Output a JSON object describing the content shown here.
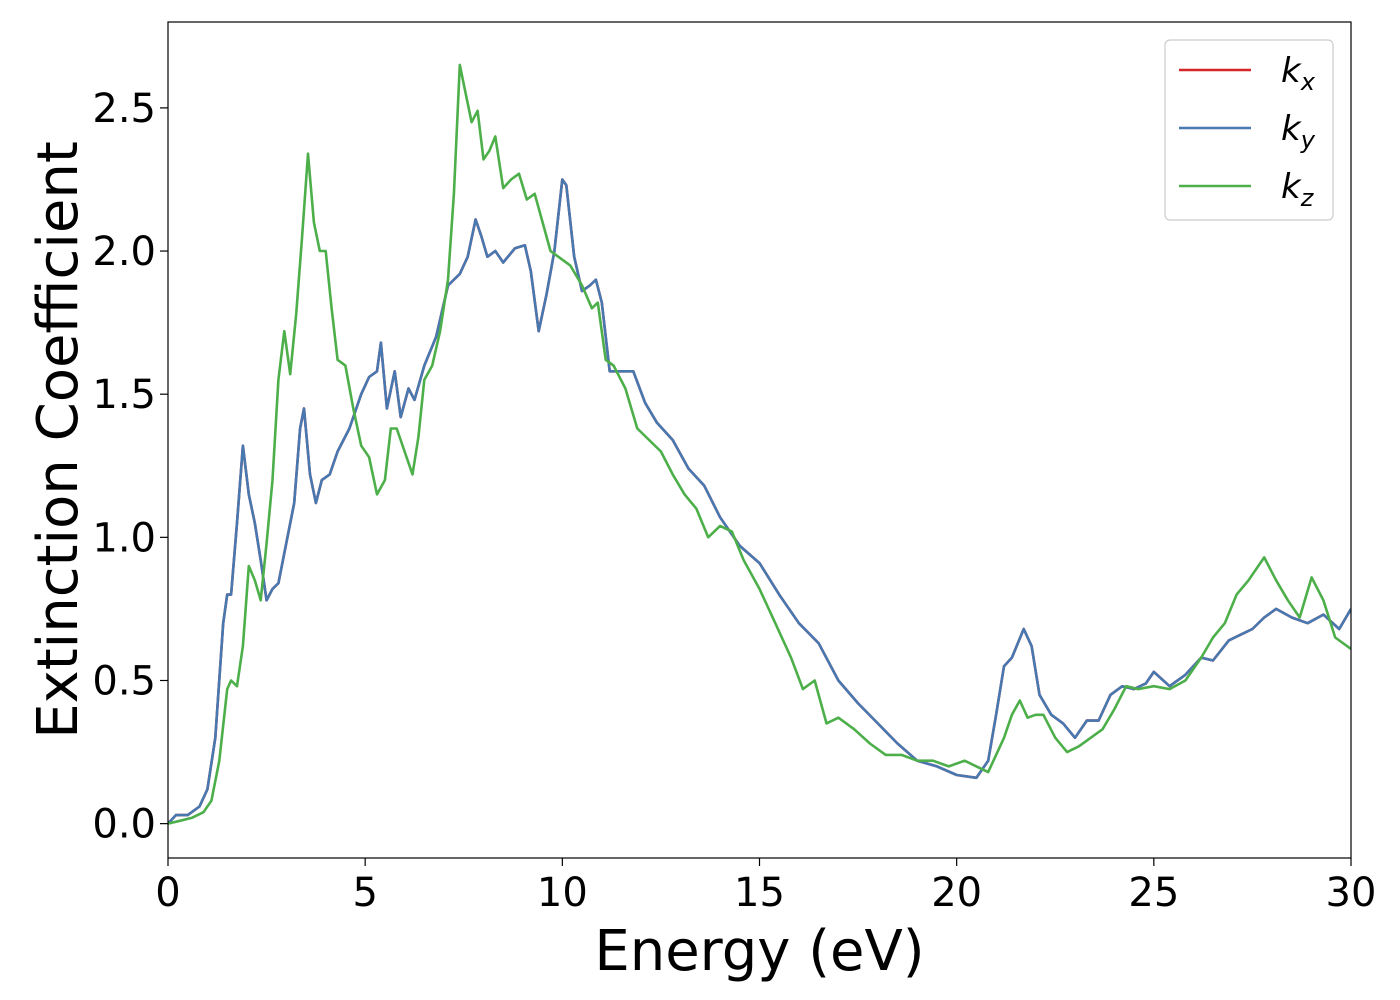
{
  "chart_data": {
    "type": "line",
    "title": "",
    "xlabel": "Energy (eV)",
    "ylabel": "Extinction Coefficient",
    "xlim": [
      0,
      30
    ],
    "ylim": [
      -0.12,
      2.8
    ],
    "xticks": [
      0,
      5,
      10,
      15,
      20,
      25,
      30
    ],
    "xtick_labels": [
      "0",
      "5",
      "10",
      "15",
      "20",
      "25",
      "30"
    ],
    "yticks": [
      0.0,
      0.5,
      1.0,
      1.5,
      2.0,
      2.5
    ],
    "ytick_labels": [
      "0.0",
      "0.5",
      "1.0",
      "1.5",
      "2.0",
      "2.5"
    ],
    "grid": false,
    "legend_position": "top-right",
    "series": [
      {
        "name": "k",
        "subscript": "x",
        "color": "#d62728",
        "x": [
          0,
          0.2,
          0.5,
          0.8,
          1.0,
          1.2,
          1.4,
          1.5,
          1.6,
          1.75,
          1.9,
          2.05,
          2.2,
          2.35,
          2.5,
          2.65,
          2.8,
          3.0,
          3.2,
          3.35,
          3.45,
          3.6,
          3.75,
          3.9,
          4.1,
          4.3,
          4.6,
          4.9,
          5.1,
          5.3,
          5.4,
          5.55,
          5.75,
          5.9,
          6.1,
          6.25,
          6.5,
          6.8,
          7.1,
          7.4,
          7.6,
          7.8,
          7.95,
          8.1,
          8.3,
          8.5,
          8.8,
          9.05,
          9.2,
          9.4,
          9.6,
          9.8,
          10.0,
          10.1,
          10.3,
          10.5,
          10.7,
          10.85,
          11.0,
          11.2,
          11.5,
          11.8,
          12.1,
          12.4,
          12.8,
          13.2,
          13.6,
          14.0,
          14.5,
          15.0,
          15.5,
          16.0,
          16.5,
          17.0,
          17.5,
          18.0,
          18.5,
          19.0,
          19.5,
          20.0,
          20.5,
          20.8,
          21.0,
          21.2,
          21.4,
          21.7,
          21.9,
          22.1,
          22.4,
          22.7,
          23.0,
          23.3,
          23.6,
          23.9,
          24.2,
          24.5,
          24.8,
          25.0,
          25.4,
          25.8,
          26.2,
          26.5,
          26.9,
          27.2,
          27.5,
          27.8,
          28.1,
          28.5,
          28.9,
          29.3,
          29.7,
          30.0
        ],
        "y": [
          0.0,
          0.03,
          0.03,
          0.06,
          0.12,
          0.3,
          0.7,
          0.8,
          0.8,
          1.05,
          1.32,
          1.15,
          1.05,
          0.92,
          0.78,
          0.82,
          0.84,
          0.98,
          1.12,
          1.38,
          1.45,
          1.22,
          1.12,
          1.2,
          1.22,
          1.3,
          1.38,
          1.5,
          1.56,
          1.58,
          1.68,
          1.45,
          1.58,
          1.42,
          1.52,
          1.48,
          1.6,
          1.7,
          1.88,
          1.92,
          1.98,
          2.11,
          2.05,
          1.98,
          2.0,
          1.96,
          2.01,
          2.02,
          1.93,
          1.72,
          1.85,
          2.0,
          2.25,
          2.23,
          1.98,
          1.86,
          1.88,
          1.9,
          1.82,
          1.58,
          1.58,
          1.58,
          1.47,
          1.4,
          1.34,
          1.24,
          1.18,
          1.07,
          0.97,
          0.91,
          0.8,
          0.7,
          0.63,
          0.5,
          0.42,
          0.35,
          0.28,
          0.22,
          0.2,
          0.17,
          0.16,
          0.22,
          0.38,
          0.55,
          0.58,
          0.68,
          0.62,
          0.45,
          0.38,
          0.35,
          0.3,
          0.36,
          0.36,
          0.45,
          0.48,
          0.47,
          0.49,
          0.53,
          0.48,
          0.52,
          0.58,
          0.57,
          0.64,
          0.66,
          0.68,
          0.72,
          0.75,
          0.72,
          0.7,
          0.73,
          0.68,
          0.75
        ]
      },
      {
        "name": "k",
        "subscript": "y",
        "color": "#4878b0",
        "x": [
          0,
          0.2,
          0.5,
          0.8,
          1.0,
          1.2,
          1.4,
          1.5,
          1.6,
          1.75,
          1.9,
          2.05,
          2.2,
          2.35,
          2.5,
          2.65,
          2.8,
          3.0,
          3.2,
          3.35,
          3.45,
          3.6,
          3.75,
          3.9,
          4.1,
          4.3,
          4.6,
          4.9,
          5.1,
          5.3,
          5.4,
          5.55,
          5.75,
          5.9,
          6.1,
          6.25,
          6.5,
          6.8,
          7.1,
          7.4,
          7.6,
          7.8,
          7.95,
          8.1,
          8.3,
          8.5,
          8.8,
          9.05,
          9.2,
          9.4,
          9.6,
          9.8,
          10.0,
          10.1,
          10.3,
          10.5,
          10.7,
          10.85,
          11.0,
          11.2,
          11.5,
          11.8,
          12.1,
          12.4,
          12.8,
          13.2,
          13.6,
          14.0,
          14.5,
          15.0,
          15.5,
          16.0,
          16.5,
          17.0,
          17.5,
          18.0,
          18.5,
          19.0,
          19.5,
          20.0,
          20.5,
          20.8,
          21.0,
          21.2,
          21.4,
          21.7,
          21.9,
          22.1,
          22.4,
          22.7,
          23.0,
          23.3,
          23.6,
          23.9,
          24.2,
          24.5,
          24.8,
          25.0,
          25.4,
          25.8,
          26.2,
          26.5,
          26.9,
          27.2,
          27.5,
          27.8,
          28.1,
          28.5,
          28.9,
          29.3,
          29.7,
          30.0
        ],
        "y": [
          0.0,
          0.03,
          0.03,
          0.06,
          0.12,
          0.3,
          0.7,
          0.8,
          0.8,
          1.05,
          1.32,
          1.15,
          1.05,
          0.92,
          0.78,
          0.82,
          0.84,
          0.98,
          1.12,
          1.38,
          1.45,
          1.22,
          1.12,
          1.2,
          1.22,
          1.3,
          1.38,
          1.5,
          1.56,
          1.58,
          1.68,
          1.45,
          1.58,
          1.42,
          1.52,
          1.48,
          1.6,
          1.7,
          1.88,
          1.92,
          1.98,
          2.11,
          2.05,
          1.98,
          2.0,
          1.96,
          2.01,
          2.02,
          1.93,
          1.72,
          1.85,
          2.0,
          2.25,
          2.23,
          1.98,
          1.86,
          1.88,
          1.9,
          1.82,
          1.58,
          1.58,
          1.58,
          1.47,
          1.4,
          1.34,
          1.24,
          1.18,
          1.07,
          0.97,
          0.91,
          0.8,
          0.7,
          0.63,
          0.5,
          0.42,
          0.35,
          0.28,
          0.22,
          0.2,
          0.17,
          0.16,
          0.22,
          0.38,
          0.55,
          0.58,
          0.68,
          0.62,
          0.45,
          0.38,
          0.35,
          0.3,
          0.36,
          0.36,
          0.45,
          0.48,
          0.47,
          0.49,
          0.53,
          0.48,
          0.52,
          0.58,
          0.57,
          0.64,
          0.66,
          0.68,
          0.72,
          0.75,
          0.72,
          0.7,
          0.73,
          0.68,
          0.75
        ]
      },
      {
        "name": "k",
        "subscript": "z",
        "color": "#4daf4a",
        "x": [
          0,
          0.3,
          0.6,
          0.9,
          1.1,
          1.3,
          1.5,
          1.6,
          1.75,
          1.9,
          2.05,
          2.2,
          2.35,
          2.5,
          2.65,
          2.8,
          2.95,
          3.1,
          3.25,
          3.4,
          3.55,
          3.7,
          3.85,
          4.0,
          4.15,
          4.3,
          4.5,
          4.7,
          4.9,
          5.1,
          5.3,
          5.5,
          5.65,
          5.8,
          6.0,
          6.2,
          6.35,
          6.5,
          6.7,
          6.9,
          7.1,
          7.25,
          7.4,
          7.55,
          7.7,
          7.85,
          8.0,
          8.15,
          8.3,
          8.5,
          8.7,
          8.9,
          9.1,
          9.3,
          9.5,
          9.7,
          9.9,
          10.2,
          10.5,
          10.75,
          10.9,
          11.1,
          11.3,
          11.6,
          11.9,
          12.2,
          12.5,
          12.8,
          13.1,
          13.4,
          13.7,
          14.0,
          14.3,
          14.6,
          15.0,
          15.4,
          15.8,
          16.1,
          16.4,
          16.7,
          17.0,
          17.4,
          17.8,
          18.2,
          18.6,
          19.0,
          19.4,
          19.8,
          20.2,
          20.5,
          20.8,
          21.0,
          21.2,
          21.4,
          21.6,
          21.8,
          22.0,
          22.2,
          22.5,
          22.8,
          23.1,
          23.4,
          23.7,
          24.0,
          24.3,
          24.6,
          25.0,
          25.4,
          25.8,
          26.2,
          26.5,
          26.8,
          27.1,
          27.4,
          27.8,
          28.1,
          28.4,
          28.7,
          29.0,
          29.3,
          29.6,
          30.0
        ],
        "y": [
          0.0,
          0.01,
          0.02,
          0.04,
          0.08,
          0.22,
          0.47,
          0.5,
          0.48,
          0.62,
          0.9,
          0.85,
          0.78,
          0.98,
          1.2,
          1.55,
          1.72,
          1.57,
          1.78,
          2.05,
          2.34,
          2.1,
          2.0,
          2.0,
          1.8,
          1.62,
          1.6,
          1.45,
          1.32,
          1.28,
          1.15,
          1.2,
          1.38,
          1.38,
          1.3,
          1.22,
          1.35,
          1.55,
          1.6,
          1.72,
          1.9,
          2.2,
          2.65,
          2.55,
          2.45,
          2.49,
          2.32,
          2.35,
          2.4,
          2.22,
          2.25,
          2.27,
          2.18,
          2.2,
          2.1,
          2.0,
          1.98,
          1.95,
          1.88,
          1.8,
          1.82,
          1.62,
          1.6,
          1.52,
          1.38,
          1.34,
          1.3,
          1.22,
          1.15,
          1.1,
          1.0,
          1.04,
          1.02,
          0.92,
          0.82,
          0.7,
          0.58,
          0.47,
          0.5,
          0.35,
          0.37,
          0.33,
          0.28,
          0.24,
          0.24,
          0.22,
          0.22,
          0.2,
          0.22,
          0.2,
          0.18,
          0.24,
          0.3,
          0.38,
          0.43,
          0.37,
          0.38,
          0.38,
          0.3,
          0.25,
          0.27,
          0.3,
          0.33,
          0.4,
          0.48,
          0.47,
          0.48,
          0.47,
          0.5,
          0.58,
          0.65,
          0.7,
          0.8,
          0.85,
          0.93,
          0.85,
          0.78,
          0.72,
          0.86,
          0.78,
          0.65,
          0.61
        ]
      }
    ]
  }
}
